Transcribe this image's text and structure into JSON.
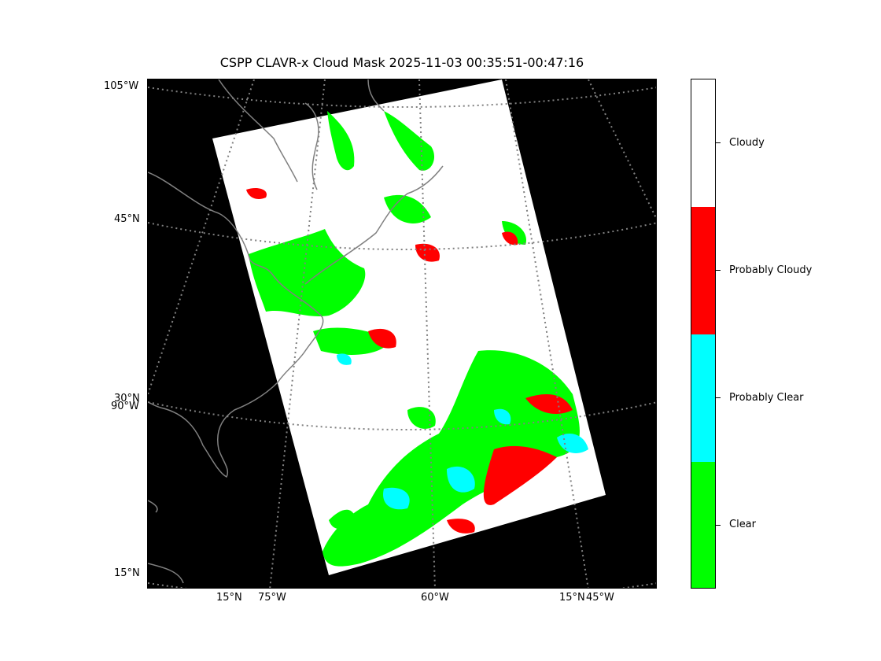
{
  "title": "CSPP CLAVR-x Cloud Mask 2025-11-03 00:35:51-00:47:16",
  "y_labels": [
    "105°W",
    "45°N",
    "30°N",
    "90°W",
    "15°N"
  ],
  "x_labels": [
    "15°N",
    "75°W",
    "60°W",
    "15°N",
    "45°W"
  ],
  "legend": {
    "categories": [
      {
        "label": "Cloudy",
        "color": "#ffffff"
      },
      {
        "label": "Probably Cloudy",
        "color": "#ff0000"
      },
      {
        "label": "Probably Clear",
        "color": "#00ffff"
      },
      {
        "label": "Clear",
        "color": "#00ff00"
      }
    ]
  },
  "colors": {
    "background": "#000000",
    "coastline": "#808080",
    "gridline": "#808080"
  }
}
